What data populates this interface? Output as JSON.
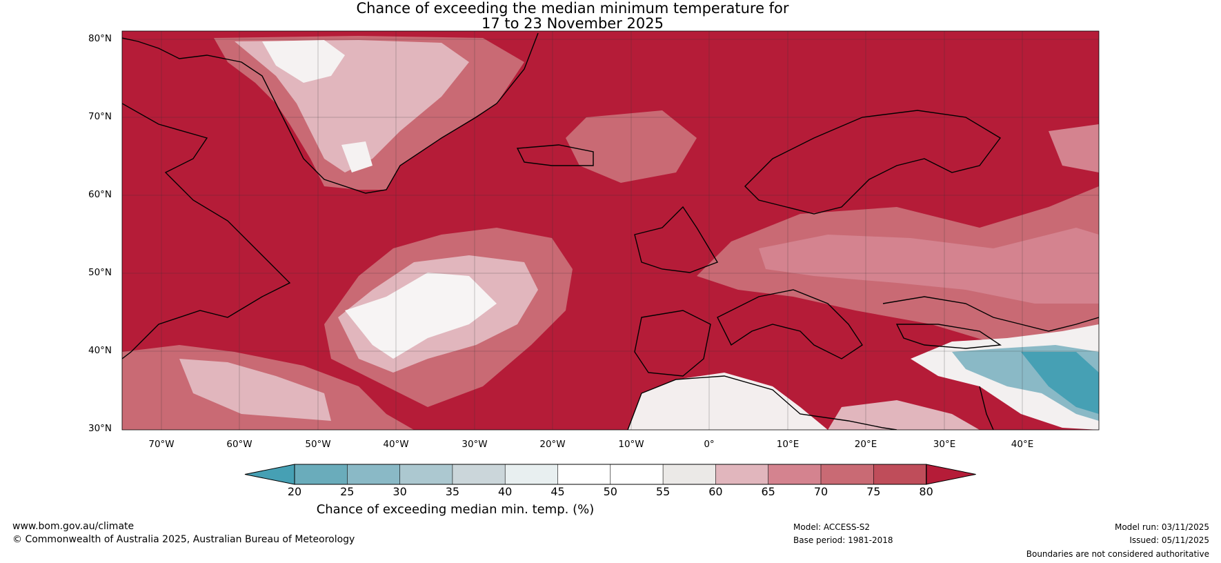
{
  "title": {
    "line1": "Chance of exceeding the median minimum temperature for",
    "line2": "17 to 23 November 2025"
  },
  "lat_labels": [
    "80°N",
    "70°N",
    "60°N",
    "50°N",
    "40°N",
    "30°N"
  ],
  "lon_labels": [
    "70°W",
    "60°W",
    "50°W",
    "40°W",
    "30°W",
    "20°W",
    "10°W",
    "0°",
    "10°E",
    "20°E",
    "30°E",
    "40°E"
  ],
  "colorbar": {
    "ticks": [
      "20",
      "25",
      "30",
      "35",
      "40",
      "45",
      "50",
      "55",
      "60",
      "65",
      "70",
      "75",
      "80"
    ],
    "colors": [
      "#46a0b4",
      "#6aacbb",
      "#8ab9c6",
      "#acc8d0",
      "#cbd6da",
      "#e8eff0",
      "#ffffff",
      "#ffffff",
      "#ebe9e7",
      "#e1b6bd",
      "#d4838f",
      "#c96a74",
      "#bf4d5a",
      "#b51c38"
    ],
    "label": "Chance of exceeding median min. temp. (%)"
  },
  "footer": {
    "website": "www.bom.gov.au/climate",
    "copyright": "© Commonwealth of Australia 2025, Australian Bureau of Meteorology",
    "model": "Model: ACCESS-S2",
    "base_period": "Base period: 1981-2018",
    "model_run": "Model run: 03/11/2025",
    "issued": "Issued: 05/11/2025",
    "boundaries_note": "Boundaries are not considered authoritative"
  }
}
